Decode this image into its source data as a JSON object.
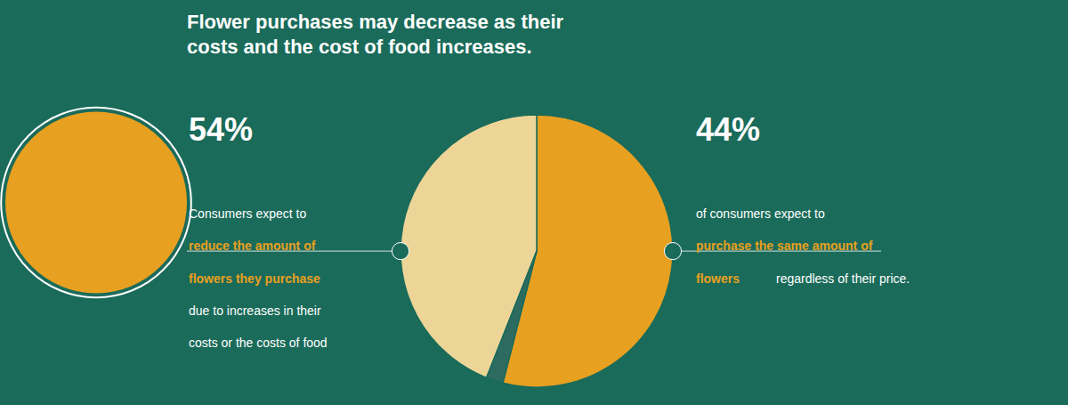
{
  "chart_data": {
    "type": "pie",
    "title": "Flower purchases may decrease as their\ncosts and the cost of food increases.",
    "values": [
      54,
      44,
      2
    ],
    "colors": [
      "#E8A020",
      "#EDD598",
      "#2D6B60"
    ],
    "annotations": [
      {
        "text": "54%",
        "color": "#ffffff"
      },
      {
        "text": "Consumers expect to",
        "color": "#ffffff"
      },
      {
        "text": "reduce the amount of",
        "color": "#E8A020"
      },
      {
        "text": "flowers they purchase",
        "color": "#E8A020"
      },
      {
        "text": "due to increases in their",
        "color": "#ffffff"
      },
      {
        "text": "costs or the costs of food",
        "color": "#ffffff"
      },
      {
        "text": "44%",
        "color": "#ffffff"
      },
      {
        "text": "of consumers expect to",
        "color": "#ffffff"
      },
      {
        "text": "purchase the same amount of",
        "color": "#E8A020"
      },
      {
        "text": "flowers",
        "color": "#E8A020"
      },
      {
        "text": "regardless of their price.",
        "color": "#ffffff"
      }
    ]
  }
}
